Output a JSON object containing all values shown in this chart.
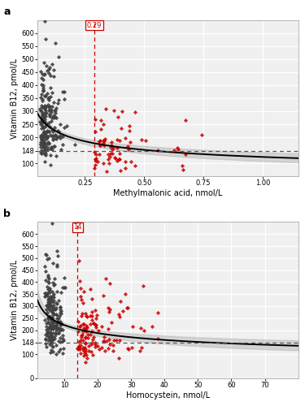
{
  "panel_a": {
    "label": "a",
    "xlabel": "Methylmalonic acid, nmol/L",
    "ylabel": "Vitamin B12, pmol/L",
    "xlim": [
      0.05,
      1.15
    ],
    "ylim": [
      50,
      650
    ],
    "yticks": [
      100,
      148,
      200,
      250,
      300,
      350,
      400,
      450,
      500,
      550,
      600
    ],
    "ytick_labels": [
      "100",
      "148",
      "200",
      "250",
      "300",
      "350",
      "400",
      "450",
      "500",
      "550",
      "600"
    ],
    "xticks": [
      0.25,
      0.5,
      0.75,
      1.0
    ],
    "xtick_labels": [
      "0.25",
      "0.50",
      "0.75",
      "1.00"
    ],
    "hline_y": 148,
    "vline_x": 0.29,
    "vline_label": "0.29",
    "threshold_color": "#cc0000",
    "normal_color": "#404040",
    "abnormal_color": "#cc0000",
    "trend_color": "#000000",
    "ci_color": "#b0b0b0",
    "bg_color": "#f0f0f0",
    "grid_color": "#ffffff"
  },
  "panel_b": {
    "label": "b",
    "xlabel": "Homocystein, nmol/L",
    "ylabel": "Vitamin B12, pmol/L",
    "xlim": [
      2,
      80
    ],
    "ylim": [
      0,
      650
    ],
    "yticks": [
      0,
      100,
      148,
      200,
      250,
      300,
      350,
      400,
      450,
      500,
      550,
      600
    ],
    "ytick_labels": [
      "0",
      "100",
      "148",
      "200",
      "250",
      "300",
      "350",
      "400",
      "450",
      "500",
      "550",
      "600"
    ],
    "xticks": [
      10,
      20,
      30,
      40,
      50,
      60,
      70
    ],
    "xtick_labels": [
      "10",
      "20",
      "30",
      "40",
      "50",
      "60",
      "70"
    ],
    "hline_y": 148,
    "vline_x": 14,
    "vline_label": "14",
    "threshold_color": "#cc0000",
    "normal_color": "#404040",
    "abnormal_color": "#cc0000",
    "trend_color": "#000000",
    "ci_color": "#b0b0b0",
    "bg_color": "#f0f0f0",
    "grid_color": "#ffffff"
  }
}
